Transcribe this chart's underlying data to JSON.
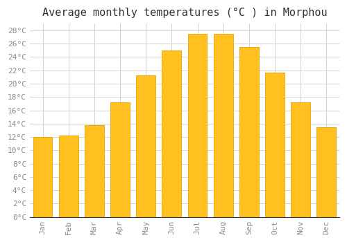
{
  "title": "Average monthly temperatures (°C ) in Morphou",
  "months": [
    "Jan",
    "Feb",
    "Mar",
    "Apr",
    "May",
    "Jun",
    "Jul",
    "Aug",
    "Sep",
    "Oct",
    "Nov",
    "Dec"
  ],
  "values": [
    12.0,
    12.2,
    13.8,
    17.2,
    21.2,
    25.0,
    27.5,
    27.5,
    25.5,
    21.7,
    17.2,
    13.5
  ],
  "bar_color": "#FFC020",
  "bar_edge_color": "#E8A000",
  "background_color": "#FFFFFF",
  "grid_color": "#CCCCCC",
  "ylim": [
    0,
    29
  ],
  "yticks": [
    0,
    2,
    4,
    6,
    8,
    10,
    12,
    14,
    16,
    18,
    20,
    22,
    24,
    26,
    28
  ],
  "title_fontsize": 11,
  "tick_fontsize": 8,
  "title_color": "#333333",
  "tick_color": "#888888",
  "font_family": "monospace",
  "bar_width": 0.75
}
